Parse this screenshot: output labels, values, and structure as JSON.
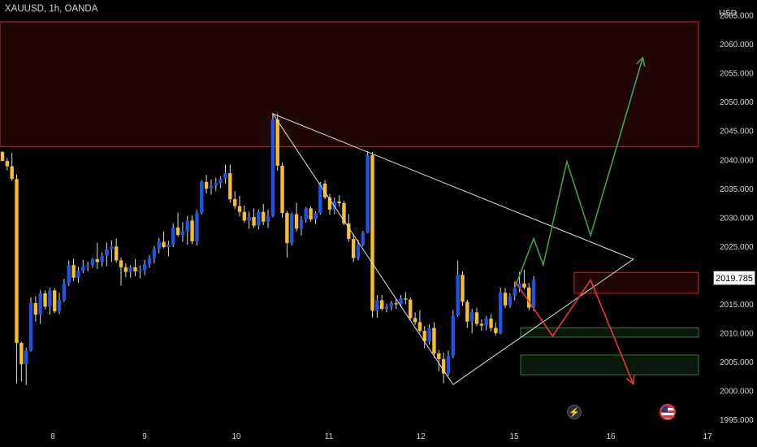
{
  "header": {
    "symbol": "XAUUSD, 1h, OANDA",
    "currency": "USD"
  },
  "price_tag": "2019.785",
  "chart_data": {
    "type": "candlestick",
    "title": "XAUUSD, 1h, OANDA",
    "y_unit": "USD",
    "ylim": [
      1994.5,
      2064.6
    ],
    "y_ticks": [
      "1995.000",
      "2000.000",
      "2005.000",
      "2010.000",
      "2015.000",
      "2020.000",
      "2025.000",
      "2030.000",
      "2035.000",
      "2040.000",
      "2045.000",
      "2050.000",
      "2055.000",
      "2060.000",
      "2065.000"
    ],
    "x_ticks": [
      {
        "label": "8",
        "pos": 65
      },
      {
        "label": "9",
        "pos": 178
      },
      {
        "label": "10",
        "pos": 291
      },
      {
        "label": "11",
        "pos": 405
      },
      {
        "label": "12",
        "pos": 518
      },
      {
        "label": "15",
        "pos": 633
      },
      {
        "label": "16",
        "pos": 752
      },
      {
        "label": "17",
        "pos": 871
      }
    ],
    "current_price": 2019.785,
    "colors": {
      "up": "#1e53e5",
      "down": "#f6c026",
      "resistance": "#c62828",
      "support": "#2e7d32",
      "bull_path": "#43a047",
      "bear_path": "#e53935",
      "triangle": "#e0e0e0"
    },
    "zones": [
      {
        "name": "supply-zone",
        "from": 2042.3,
        "to": 2063.9,
        "type": "resistance"
      },
      {
        "name": "resistance-zone",
        "from": 2016.9,
        "to": 2020.5,
        "type": "resistance"
      },
      {
        "name": "support-zone-upper",
        "from": 2009.3,
        "to": 2010.9,
        "type": "support"
      },
      {
        "name": "support-zone-lower",
        "from": 2002.8,
        "to": 2006.2,
        "type": "support"
      }
    ],
    "triangle": [
      {
        "bar": 57,
        "price": 2048.0
      },
      {
        "bar": 133,
        "price": 2022.8
      },
      {
        "bar": 95,
        "price": 2001.1
      }
    ],
    "bull_path": [
      {
        "bar": 108,
        "price": 2017.8
      },
      {
        "bar": 112,
        "price": 2026.4
      },
      {
        "bar": 114,
        "price": 2021.8
      },
      {
        "bar": 119,
        "price": 2039.7
      },
      {
        "bar": 124,
        "price": 2026.9
      },
      {
        "bar": 135,
        "price": 2057.7
      }
    ],
    "bear_path": [
      {
        "bar": 108,
        "price": 2019.0
      },
      {
        "bar": 116,
        "price": 2009.5
      },
      {
        "bar": 124,
        "price": 2019.2
      },
      {
        "bar": 133,
        "price": 2001.2
      }
    ],
    "candles": [
      [
        2041.4,
        2041.5,
        2039.9,
        2039.8
      ],
      [
        2039.8,
        2040.3,
        2038.2,
        2038.9
      ],
      [
        2038.9,
        2041.2,
        2036.4,
        2036.7
      ],
      [
        2036.7,
        2037.5,
        2001.3,
        2008.3
      ],
      [
        2008.3,
        2008.5,
        2001.6,
        2004.6
      ],
      [
        2004.6,
        2007.5,
        2001.0,
        2007.0
      ],
      [
        2007.0,
        2016.2,
        2006.8,
        2015.2
      ],
      [
        2015.2,
        2016.4,
        2012.0,
        2013.2
      ],
      [
        2013.2,
        2017.5,
        2011.6,
        2016.9
      ],
      [
        2016.9,
        2017.4,
        2014.1,
        2014.6
      ],
      [
        2014.6,
        2017.9,
        2013.2,
        2017.4
      ],
      [
        2017.4,
        2017.8,
        2013.5,
        2013.8
      ],
      [
        2013.8,
        2017.0,
        2013.3,
        2015.7
      ],
      [
        2015.7,
        2019.4,
        2015.4,
        2018.6
      ],
      [
        2018.6,
        2022.6,
        2018.2,
        2021.8
      ],
      [
        2021.8,
        2022.9,
        2019.0,
        2019.6
      ],
      [
        2019.6,
        2021.5,
        2018.7,
        2020.8
      ],
      [
        2020.8,
        2022.7,
        2020.4,
        2021.6
      ],
      [
        2021.6,
        2022.4,
        2020.7,
        2021.8
      ],
      [
        2021.8,
        2023.0,
        2021.3,
        2022.8
      ],
      [
        2022.8,
        2025.7,
        2021.1,
        2022.3
      ],
      [
        2022.3,
        2024.0,
        2021.5,
        2023.4
      ],
      [
        2023.4,
        2025.7,
        2021.6,
        2024.5
      ],
      [
        2024.5,
        2026.1,
        2022.3,
        2025.0
      ],
      [
        2025.0,
        2026.4,
        2022.2,
        2022.6
      ],
      [
        2022.6,
        2023.1,
        2018.2,
        2021.4
      ],
      [
        2021.4,
        2022.1,
        2019.7,
        2020.6
      ],
      [
        2020.6,
        2021.8,
        2019.6,
        2021.4
      ],
      [
        2021.4,
        2022.8,
        2019.9,
        2020.7
      ],
      [
        2020.7,
        2021.7,
        2019.5,
        2020.9
      ],
      [
        2020.9,
        2022.7,
        2020.0,
        2021.9
      ],
      [
        2021.9,
        2023.5,
        2021.3,
        2023.0
      ],
      [
        2023.0,
        2025.1,
        2022.1,
        2024.6
      ],
      [
        2024.6,
        2026.5,
        2023.8,
        2025.8
      ],
      [
        2025.8,
        2027.6,
        2024.7,
        2024.9
      ],
      [
        2024.9,
        2026.0,
        2023.3,
        2025.3
      ],
      [
        2025.3,
        2029.0,
        2024.9,
        2028.3
      ],
      [
        2028.3,
        2030.9,
        2026.7,
        2027.0
      ],
      [
        2027.0,
        2029.2,
        2025.8,
        2027.6
      ],
      [
        2027.6,
        2030.3,
        2025.3,
        2029.5
      ],
      [
        2029.5,
        2030.4,
        2025.4,
        2025.9
      ],
      [
        2025.9,
        2031.3,
        2025.2,
        2030.8
      ],
      [
        2030.8,
        2036.5,
        2030.5,
        2036.2
      ],
      [
        2036.2,
        2037.4,
        2034.2,
        2035.0
      ],
      [
        2035.0,
        2036.6,
        2034.0,
        2035.6
      ],
      [
        2035.6,
        2036.9,
        2034.6,
        2036.0
      ],
      [
        2036.0,
        2037.2,
        2035.1,
        2036.7
      ],
      [
        2036.7,
        2039.2,
        2035.9,
        2037.7
      ],
      [
        2037.7,
        2039.2,
        2032.6,
        2033.2
      ],
      [
        2033.2,
        2034.6,
        2031.5,
        2032.0
      ],
      [
        2032.0,
        2033.8,
        2030.2,
        2031.0
      ],
      [
        2031.0,
        2032.1,
        2029.1,
        2029.5
      ],
      [
        2029.5,
        2031.0,
        2028.1,
        2030.1
      ],
      [
        2030.1,
        2031.6,
        2028.2,
        2028.6
      ],
      [
        2028.6,
        2031.4,
        2028.0,
        2031.0
      ],
      [
        2031.0,
        2032.4,
        2028.7,
        2029.3
      ],
      [
        2029.3,
        2031.4,
        2028.2,
        2030.3
      ],
      [
        2030.3,
        2048.0,
        2030.1,
        2047.0
      ],
      [
        2047.0,
        2047.9,
        2038.1,
        2039.0
      ],
      [
        2039.0,
        2039.6,
        2030.0,
        2030.8
      ],
      [
        2030.8,
        2031.2,
        2023.1,
        2025.6
      ],
      [
        2025.6,
        2030.9,
        2025.2,
        2030.6
      ],
      [
        2030.6,
        2032.6,
        2027.6,
        2028.1
      ],
      [
        2028.1,
        2030.3,
        2026.9,
        2029.7
      ],
      [
        2029.7,
        2031.8,
        2029.1,
        2031.6
      ],
      [
        2031.6,
        2032.0,
        2029.3,
        2029.7
      ],
      [
        2029.7,
        2031.1,
        2028.9,
        2030.8
      ],
      [
        2030.8,
        2036.2,
        2030.5,
        2035.9
      ],
      [
        2035.9,
        2036.5,
        2033.2,
        2033.5
      ],
      [
        2033.5,
        2034.1,
        2030.5,
        2031.4
      ],
      [
        2031.4,
        2033.5,
        2030.6,
        2032.8
      ],
      [
        2032.8,
        2033.9,
        2031.9,
        2032.5
      ],
      [
        2032.5,
        2032.9,
        2028.7,
        2029.0
      ],
      [
        2029.0,
        2030.6,
        2025.8,
        2026.3
      ],
      [
        2026.3,
        2027.2,
        2022.3,
        2023.0
      ],
      [
        2023.0,
        2026.2,
        2022.6,
        2025.3
      ],
      [
        2025.3,
        2027.7,
        2025.0,
        2027.4
      ],
      [
        2027.4,
        2041.5,
        2027.3,
        2040.8
      ],
      [
        2040.8,
        2041.4,
        2012.7,
        2013.9
      ],
      [
        2013.9,
        2016.6,
        2012.7,
        2015.7
      ],
      [
        2015.7,
        2016.6,
        2013.9,
        2014.2
      ],
      [
        2014.2,
        2015.1,
        2013.6,
        2014.6
      ],
      [
        2014.6,
        2015.6,
        2013.9,
        2015.2
      ],
      [
        2015.2,
        2016.0,
        2014.2,
        2015.0
      ],
      [
        2015.0,
        2016.6,
        2014.5,
        2016.0
      ],
      [
        2016.0,
        2017.1,
        2015.0,
        2015.8
      ],
      [
        2015.8,
        2016.2,
        2012.3,
        2012.6
      ],
      [
        2012.6,
        2013.6,
        2011.4,
        2011.9
      ],
      [
        2011.9,
        2014.0,
        2010.0,
        2010.4
      ],
      [
        2010.4,
        2011.2,
        2007.4,
        2008.6
      ],
      [
        2008.6,
        2011.5,
        2008.0,
        2010.9
      ],
      [
        2010.9,
        2011.9,
        2005.7,
        2006.5
      ],
      [
        2006.5,
        2007.1,
        2003.4,
        2005.5
      ],
      [
        2005.5,
        2006.6,
        2001.3,
        2003.0
      ],
      [
        2003.0,
        2007.0,
        2002.6,
        2006.1
      ],
      [
        2006.1,
        2014.0,
        2005.7,
        2013.0
      ],
      [
        2013.0,
        2022.6,
        2012.8,
        2020.1
      ],
      [
        2020.1,
        2020.7,
        2014.7,
        2015.4
      ],
      [
        2015.4,
        2015.8,
        2010.9,
        2012.0
      ],
      [
        2012.0,
        2014.2,
        2010.0,
        2013.6
      ],
      [
        2013.6,
        2014.4,
        2011.2,
        2011.6
      ],
      [
        2011.6,
        2012.4,
        2010.4,
        2011.3
      ],
      [
        2011.3,
        2013.0,
        2010.5,
        2012.5
      ],
      [
        2012.5,
        2013.3,
        2010.3,
        2010.9
      ],
      [
        2010.9,
        2011.9,
        2009.6,
        2010.0
      ],
      [
        2010.0,
        2017.9,
        2009.8,
        2017.0
      ],
      [
        2017.0,
        2017.8,
        2014.3,
        2014.8
      ],
      [
        2014.8,
        2016.9,
        2014.4,
        2016.4
      ],
      [
        2016.4,
        2019.0,
        2015.7,
        2017.8
      ],
      [
        2017.8,
        2020.6,
        2017.1,
        2018.6
      ],
      [
        2018.6,
        2021.0,
        2017.6,
        2017.9
      ],
      [
        2017.9,
        2018.7,
        2013.9,
        2014.4
      ],
      [
        2014.4,
        2019.9,
        2013.8,
        2019.2
      ]
    ]
  }
}
